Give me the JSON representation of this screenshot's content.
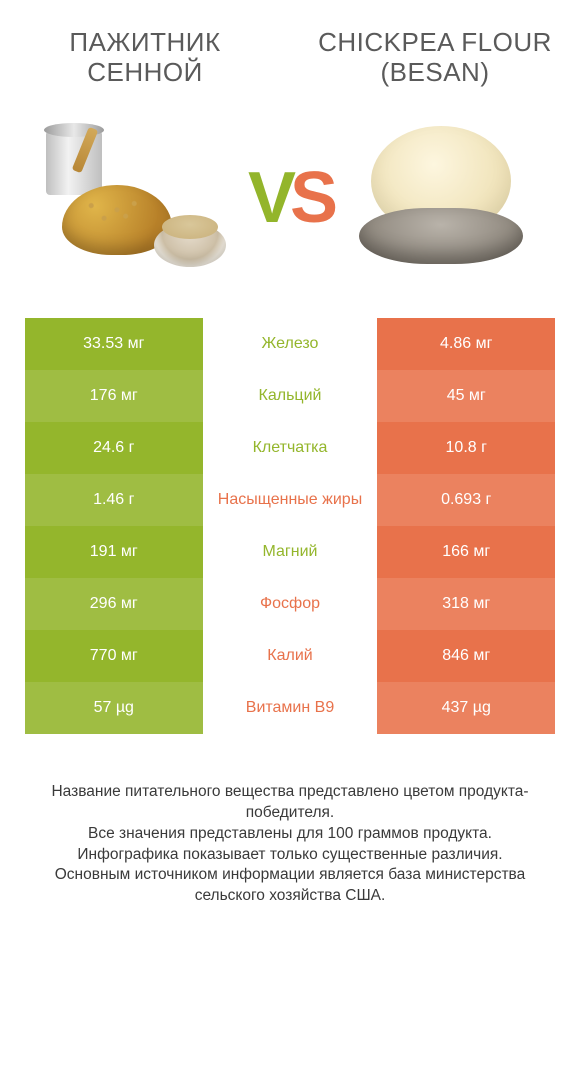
{
  "colors": {
    "green_a": "#94b62c",
    "green_b": "#9fbd43",
    "orange_a": "#e8724b",
    "orange_b": "#eb825f",
    "text": "#3a3a3a",
    "background": "#ffffff"
  },
  "left_title": "Пажитник сенной",
  "right_title": "Chickpea flour (besan)",
  "vs_v": "V",
  "vs_s": "S",
  "rows": [
    {
      "zebra": "a",
      "left": "33.53 мг",
      "label": "Железо",
      "right": "4.86 мг",
      "winner": "green"
    },
    {
      "zebra": "b",
      "left": "176 мг",
      "label": "Кальций",
      "right": "45 мг",
      "winner": "green"
    },
    {
      "zebra": "a",
      "left": "24.6 г",
      "label": "Клетчатка",
      "right": "10.8 г",
      "winner": "green"
    },
    {
      "zebra": "b",
      "left": "1.46 г",
      "label": "Насыщенные жиры",
      "right": "0.693 г",
      "winner": "orange"
    },
    {
      "zebra": "a",
      "left": "191 мг",
      "label": "Магний",
      "right": "166 мг",
      "winner": "green"
    },
    {
      "zebra": "b",
      "left": "296 мг",
      "label": "Фосфор",
      "right": "318 мг",
      "winner": "orange"
    },
    {
      "zebra": "a",
      "left": "770 мг",
      "label": "Калий",
      "right": "846 мг",
      "winner": "orange"
    },
    {
      "zebra": "b",
      "left": "57 µg",
      "label": "Витамин B9",
      "right": "437 µg",
      "winner": "orange"
    }
  ],
  "footer_lines": [
    "Название питательного вещества представлено цветом продукта-победителя.",
    "Все значения представлены для 100 граммов продукта.",
    "Инфографика показывает только существенные различия.",
    "Основным источником информации является база министерства сельского хозяйства США."
  ]
}
